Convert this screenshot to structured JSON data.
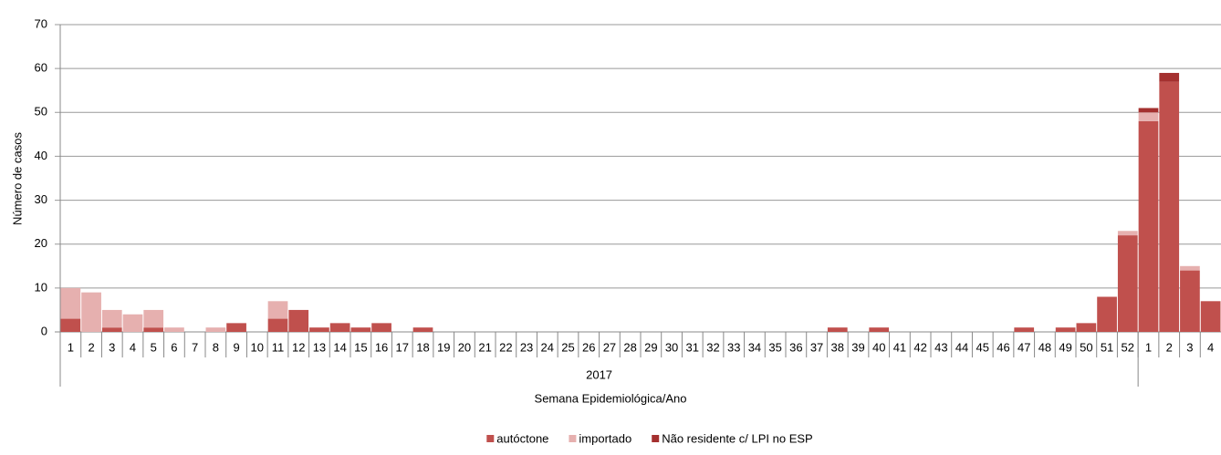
{
  "chart_data": {
    "type": "stacked_bar",
    "y_label": "Número de casos",
    "x_label": "Semana Epidemiológica/Ano",
    "group_label": "2017",
    "categories": [
      "1",
      "2",
      "3",
      "4",
      "5",
      "6",
      "7",
      "8",
      "9",
      "10",
      "11",
      "12",
      "13",
      "14",
      "15",
      "16",
      "17",
      "18",
      "19",
      "20",
      "21",
      "22",
      "23",
      "24",
      "25",
      "26",
      "27",
      "28",
      "29",
      "30",
      "31",
      "32",
      "33",
      "34",
      "35",
      "36",
      "37",
      "38",
      "39",
      "40",
      "41",
      "42",
      "43",
      "44",
      "45",
      "46",
      "47",
      "48",
      "49",
      "50",
      "51",
      "52",
      "1",
      "2",
      "3",
      "4"
    ],
    "series": [
      {
        "name": "autóctone",
        "color": "#c0504d",
        "values": [
          3,
          0,
          1,
          0,
          1,
          0,
          0,
          0,
          2,
          0,
          3,
          5,
          1,
          2,
          1,
          2,
          0,
          1,
          0,
          0,
          0,
          0,
          0,
          0,
          0,
          0,
          0,
          0,
          0,
          0,
          0,
          0,
          0,
          0,
          0,
          0,
          0,
          1,
          0,
          1,
          0,
          0,
          0,
          0,
          0,
          0,
          1,
          0,
          1,
          2,
          8,
          22,
          48,
          57,
          14,
          7
        ]
      },
      {
        "name": "importado",
        "color": "#e6b0af",
        "values": [
          7,
          9,
          4,
          4,
          4,
          1,
          0,
          1,
          0,
          0,
          4,
          0,
          0,
          0,
          0,
          0,
          0,
          0,
          0,
          0,
          0,
          0,
          0,
          0,
          0,
          0,
          0,
          0,
          0,
          0,
          0,
          0,
          0,
          0,
          0,
          0,
          0,
          0,
          0,
          0,
          0,
          0,
          0,
          0,
          0,
          0,
          0,
          0,
          0,
          0,
          0,
          1,
          2,
          0,
          1,
          0
        ]
      },
      {
        "name": "Não residente c/ LPI no ESP",
        "color": "#a4302f",
        "values": [
          0,
          0,
          0,
          0,
          0,
          0,
          0,
          0,
          0,
          0,
          0,
          0,
          0,
          0,
          0,
          0,
          0,
          0,
          0,
          0,
          0,
          0,
          0,
          0,
          0,
          0,
          0,
          0,
          0,
          0,
          0,
          0,
          0,
          0,
          0,
          0,
          0,
          0,
          0,
          0,
          0,
          0,
          0,
          0,
          0,
          0,
          0,
          0,
          0,
          0,
          0,
          0,
          1,
          2,
          0,
          0
        ]
      }
    ],
    "ylim": [
      0,
      70
    ],
    "yticks": [
      0,
      10,
      20,
      30,
      40,
      50,
      60,
      70
    ],
    "grid": true,
    "legend": "bottom"
  }
}
